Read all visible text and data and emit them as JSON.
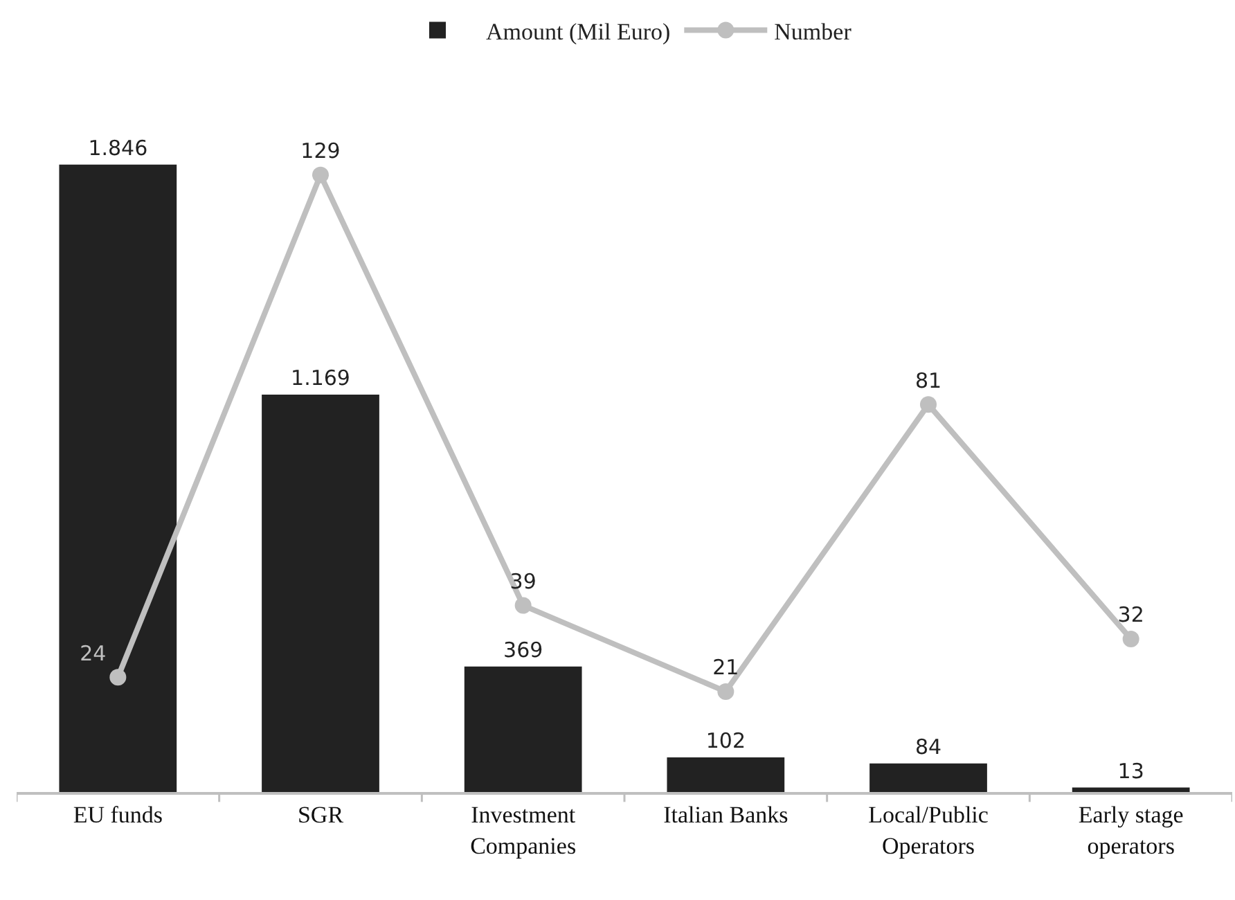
{
  "chart_data": {
    "type": "bar",
    "categories": [
      "EU funds",
      "SGR",
      "Investment Companies",
      "Italian Banks",
      "Local/Public Operators",
      "Early stage operators"
    ],
    "series": [
      {
        "name": "Amount (Mil Euro)",
        "color": "#222222",
        "values": [
          1846,
          1169,
          369,
          102,
          84,
          13
        ],
        "value_labels": [
          "1.846",
          "1.169",
          "369",
          "102",
          "84",
          "13"
        ]
      },
      {
        "name": "Number",
        "type": "line",
        "axis": "y2",
        "color": "#bfbfbf",
        "values": [
          24,
          129,
          39,
          21,
          81,
          32
        ],
        "value_labels": [
          "24",
          "129",
          "39",
          "21",
          "81",
          "32"
        ]
      }
    ],
    "legend": "top",
    "marker": "circle",
    "tick_labels": "x"
  }
}
